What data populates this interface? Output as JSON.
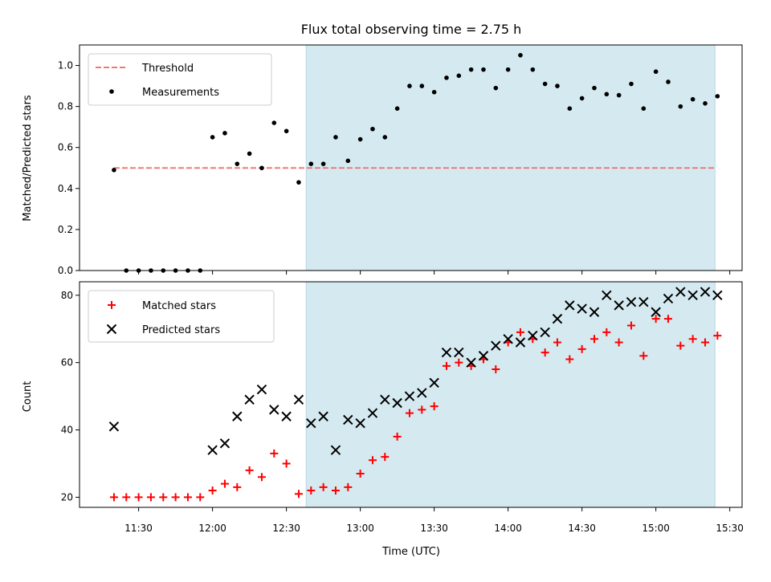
{
  "chart_data": [
    {
      "type": "scatter",
      "title": "Flux total observing time = 2.75 h",
      "xlabel": "",
      "ylabel": "Matched/Predicted stars",
      "ylim": [
        0,
        1.1
      ],
      "yticks": [
        "0.0",
        "0.2",
        "0.4",
        "0.6",
        "0.8",
        "1.0"
      ],
      "grid": false,
      "legend_placement": "upper-left",
      "shaded_region": {
        "x_start": "12:38",
        "x_end": "15:24",
        "color": "#d4eaf0"
      },
      "threshold": {
        "name": "Threshold",
        "value": 0.5,
        "x_start": "11:20",
        "x_end": "15:24",
        "color": "#f07878",
        "style": "dashed"
      },
      "series": [
        {
          "name": "Measurements",
          "marker": "dot",
          "color": "#000000",
          "x": [
            "11:20",
            "11:25",
            "11:30",
            "11:35",
            "11:40",
            "11:45",
            "11:50",
            "11:55",
            "12:00",
            "12:05",
            "12:10",
            "12:15",
            "12:20",
            "12:25",
            "12:30",
            "12:35",
            "12:40",
            "12:45",
            "12:50",
            "12:55",
            "13:00",
            "13:05",
            "13:10",
            "13:15",
            "13:20",
            "13:25",
            "13:30",
            "13:35",
            "13:40",
            "13:45",
            "13:50",
            "13:55",
            "14:00",
            "14:05",
            "14:10",
            "14:15",
            "14:20",
            "14:25",
            "14:30",
            "14:35",
            "14:40",
            "14:45",
            "14:50",
            "14:55",
            "15:00",
            "15:05",
            "15:10",
            "15:15",
            "15:20",
            "15:25"
          ],
          "y": [
            0.49,
            0,
            0,
            0,
            0,
            0,
            0,
            0,
            0.65,
            0.67,
            0.52,
            0.57,
            0.5,
            0.72,
            0.68,
            0.43,
            0.52,
            0.52,
            0.65,
            0.535,
            0.64,
            0.69,
            0.65,
            0.79,
            0.9,
            0.9,
            0.87,
            0.94,
            0.95,
            0.98,
            0.98,
            0.89,
            0.98,
            1.05,
            0.98,
            0.91,
            0.9,
            0.79,
            0.84,
            0.89,
            0.86,
            0.855,
            0.91,
            0.79,
            0.97,
            0.92,
            0.8,
            0.835,
            0.815,
            0.85
          ]
        }
      ]
    },
    {
      "type": "scatter",
      "title": "",
      "xlabel": "Time (UTC)",
      "ylabel": "Count",
      "ylim": [
        17,
        84
      ],
      "yticks": [
        "20",
        "40",
        "60",
        "80"
      ],
      "xticks": [
        "11:30",
        "12:00",
        "12:30",
        "13:00",
        "13:30",
        "14:00",
        "14:30",
        "15:00",
        "15:30"
      ],
      "grid": false,
      "legend_placement": "upper-left",
      "shaded_region": {
        "x_start": "12:38",
        "x_end": "15:24",
        "color": "#d4eaf0"
      },
      "x": [
        "11:20",
        "11:25",
        "11:30",
        "11:35",
        "11:40",
        "11:45",
        "11:50",
        "11:55",
        "12:00",
        "12:05",
        "12:10",
        "12:15",
        "12:20",
        "12:25",
        "12:30",
        "12:35",
        "12:40",
        "12:45",
        "12:50",
        "12:55",
        "13:00",
        "13:05",
        "13:10",
        "13:15",
        "13:20",
        "13:25",
        "13:30",
        "13:35",
        "13:40",
        "13:45",
        "13:50",
        "13:55",
        "14:00",
        "14:05",
        "14:10",
        "14:15",
        "14:20",
        "14:25",
        "14:30",
        "14:35",
        "14:40",
        "14:45",
        "14:50",
        "14:55",
        "15:00",
        "15:05",
        "15:10",
        "15:15",
        "15:20",
        "15:25"
      ],
      "series": [
        {
          "name": "Matched stars",
          "marker": "plus",
          "color": "#ff0000",
          "values": [
            20,
            20,
            20,
            20,
            20,
            20,
            20,
            20,
            22,
            24,
            23,
            28,
            26,
            33,
            30,
            21,
            22,
            23,
            22,
            23,
            27,
            31,
            32,
            38,
            45,
            46,
            47,
            59,
            60,
            59,
            61,
            58,
            66,
            69,
            67,
            63,
            66,
            61,
            64,
            67,
            69,
            66,
            71,
            62,
            73,
            73,
            65,
            67,
            66,
            68
          ]
        },
        {
          "name": "Predicted stars",
          "marker": "x",
          "color": "#000000",
          "values": [
            41,
            null,
            null,
            null,
            null,
            null,
            null,
            null,
            34,
            36,
            44,
            49,
            52,
            46,
            44,
            49,
            42,
            44,
            34,
            43,
            42,
            45,
            49,
            48,
            50,
            51,
            54,
            63,
            63,
            60,
            62,
            65,
            67,
            66,
            68,
            69,
            73,
            77,
            76,
            75,
            80,
            77,
            78,
            78,
            75,
            79,
            81,
            80,
            81,
            80
          ]
        }
      ]
    }
  ]
}
